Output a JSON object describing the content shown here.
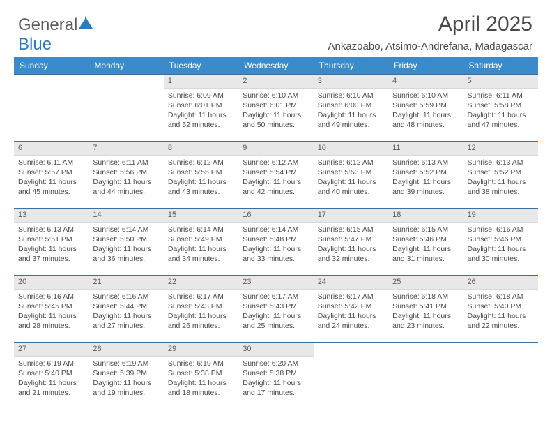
{
  "brand": {
    "part1": "General",
    "part2": "Blue"
  },
  "title": "April 2025",
  "subtitle": "Ankazoabo, Atsimo-Andrefana, Madagascar",
  "colors": {
    "header_bg": "#3b8bca",
    "header_text": "#ffffff",
    "row_border": "#3b6fa0",
    "daynum_bg": "#e8e8e8",
    "text": "#4a4a4a",
    "brand_blue": "#2a7bbf"
  },
  "fonts": {
    "body_pt": 10.5,
    "title_pt": 30,
    "subtitle_pt": 15,
    "header_pt": 12,
    "daynum_pt": 11
  },
  "weekdays": [
    "Sunday",
    "Monday",
    "Tuesday",
    "Wednesday",
    "Thursday",
    "Friday",
    "Saturday"
  ],
  "weeks": [
    [
      {
        "empty": true
      },
      {
        "empty": true
      },
      {
        "n": "1",
        "sr": "6:09 AM",
        "ss": "6:01 PM",
        "dl": "11 hours and 52 minutes."
      },
      {
        "n": "2",
        "sr": "6:10 AM",
        "ss": "6:01 PM",
        "dl": "11 hours and 50 minutes."
      },
      {
        "n": "3",
        "sr": "6:10 AM",
        "ss": "6:00 PM",
        "dl": "11 hours and 49 minutes."
      },
      {
        "n": "4",
        "sr": "6:10 AM",
        "ss": "5:59 PM",
        "dl": "11 hours and 48 minutes."
      },
      {
        "n": "5",
        "sr": "6:11 AM",
        "ss": "5:58 PM",
        "dl": "11 hours and 47 minutes."
      }
    ],
    [
      {
        "n": "6",
        "sr": "6:11 AM",
        "ss": "5:57 PM",
        "dl": "11 hours and 45 minutes."
      },
      {
        "n": "7",
        "sr": "6:11 AM",
        "ss": "5:56 PM",
        "dl": "11 hours and 44 minutes."
      },
      {
        "n": "8",
        "sr": "6:12 AM",
        "ss": "5:55 PM",
        "dl": "11 hours and 43 minutes."
      },
      {
        "n": "9",
        "sr": "6:12 AM",
        "ss": "5:54 PM",
        "dl": "11 hours and 42 minutes."
      },
      {
        "n": "10",
        "sr": "6:12 AM",
        "ss": "5:53 PM",
        "dl": "11 hours and 40 minutes."
      },
      {
        "n": "11",
        "sr": "6:13 AM",
        "ss": "5:52 PM",
        "dl": "11 hours and 39 minutes."
      },
      {
        "n": "12",
        "sr": "6:13 AM",
        "ss": "5:52 PM",
        "dl": "11 hours and 38 minutes."
      }
    ],
    [
      {
        "n": "13",
        "sr": "6:13 AM",
        "ss": "5:51 PM",
        "dl": "11 hours and 37 minutes."
      },
      {
        "n": "14",
        "sr": "6:14 AM",
        "ss": "5:50 PM",
        "dl": "11 hours and 36 minutes."
      },
      {
        "n": "15",
        "sr": "6:14 AM",
        "ss": "5:49 PM",
        "dl": "11 hours and 34 minutes."
      },
      {
        "n": "16",
        "sr": "6:14 AM",
        "ss": "5:48 PM",
        "dl": "11 hours and 33 minutes."
      },
      {
        "n": "17",
        "sr": "6:15 AM",
        "ss": "5:47 PM",
        "dl": "11 hours and 32 minutes."
      },
      {
        "n": "18",
        "sr": "6:15 AM",
        "ss": "5:46 PM",
        "dl": "11 hours and 31 minutes."
      },
      {
        "n": "19",
        "sr": "6:16 AM",
        "ss": "5:46 PM",
        "dl": "11 hours and 30 minutes."
      }
    ],
    [
      {
        "n": "20",
        "sr": "6:16 AM",
        "ss": "5:45 PM",
        "dl": "11 hours and 28 minutes."
      },
      {
        "n": "21",
        "sr": "6:16 AM",
        "ss": "5:44 PM",
        "dl": "11 hours and 27 minutes."
      },
      {
        "n": "22",
        "sr": "6:17 AM",
        "ss": "5:43 PM",
        "dl": "11 hours and 26 minutes."
      },
      {
        "n": "23",
        "sr": "6:17 AM",
        "ss": "5:43 PM",
        "dl": "11 hours and 25 minutes."
      },
      {
        "n": "24",
        "sr": "6:17 AM",
        "ss": "5:42 PM",
        "dl": "11 hours and 24 minutes."
      },
      {
        "n": "25",
        "sr": "6:18 AM",
        "ss": "5:41 PM",
        "dl": "11 hours and 23 minutes."
      },
      {
        "n": "26",
        "sr": "6:18 AM",
        "ss": "5:40 PM",
        "dl": "11 hours and 22 minutes."
      }
    ],
    [
      {
        "n": "27",
        "sr": "6:19 AM",
        "ss": "5:40 PM",
        "dl": "11 hours and 21 minutes."
      },
      {
        "n": "28",
        "sr": "6:19 AM",
        "ss": "5:39 PM",
        "dl": "11 hours and 19 minutes."
      },
      {
        "n": "29",
        "sr": "6:19 AM",
        "ss": "5:38 PM",
        "dl": "11 hours and 18 minutes."
      },
      {
        "n": "30",
        "sr": "6:20 AM",
        "ss": "5:38 PM",
        "dl": "11 hours and 17 minutes."
      },
      {
        "empty": true
      },
      {
        "empty": true
      },
      {
        "empty": true
      }
    ]
  ],
  "labels": {
    "sunrise": "Sunrise: ",
    "sunset": "Sunset: ",
    "daylight": "Daylight: "
  }
}
